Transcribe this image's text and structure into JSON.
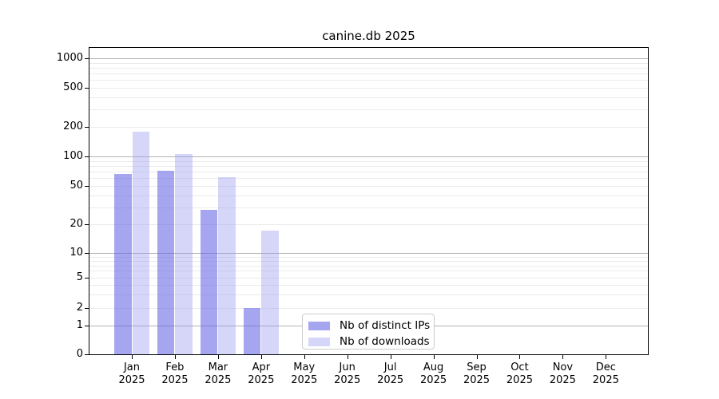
{
  "chart_data": {
    "type": "bar",
    "title": "canine.db 2025",
    "categories": [
      "Jan",
      "Feb",
      "Mar",
      "Apr",
      "May",
      "Jun",
      "Jul",
      "Aug",
      "Sep",
      "Oct",
      "Nov",
      "Dec"
    ],
    "year_label": "2025",
    "series": [
      {
        "name": "Nb of distinct IPs",
        "color": "rgba(102,102,230,0.58)",
        "values": [
          66,
          71,
          28,
          2,
          0,
          0,
          0,
          0,
          0,
          0,
          0,
          0
        ]
      },
      {
        "name": "Nb of downloads",
        "color": "rgba(153,153,238,0.40)",
        "values": [
          180,
          105,
          62,
          17,
          0,
          0,
          0,
          0,
          0,
          0,
          0,
          0
        ]
      }
    ],
    "y_axis": {
      "scale": "symlog",
      "tick_labels": [
        "1000",
        "500",
        "200",
        "100",
        "50",
        "20",
        "10",
        "5",
        "2",
        "1",
        "0"
      ],
      "tick_values": [
        1000,
        500,
        200,
        100,
        50,
        20,
        10,
        5,
        2,
        1,
        0
      ],
      "major_grid_values": [
        1,
        10,
        100,
        1000
      ],
      "major_grid_color": "#b3b3b3",
      "minor_grid_color": "#ebebeb"
    },
    "legend_position": "lower center",
    "grid": true,
    "plot_border_color": "#000000",
    "background_color": "#ffffff"
  }
}
